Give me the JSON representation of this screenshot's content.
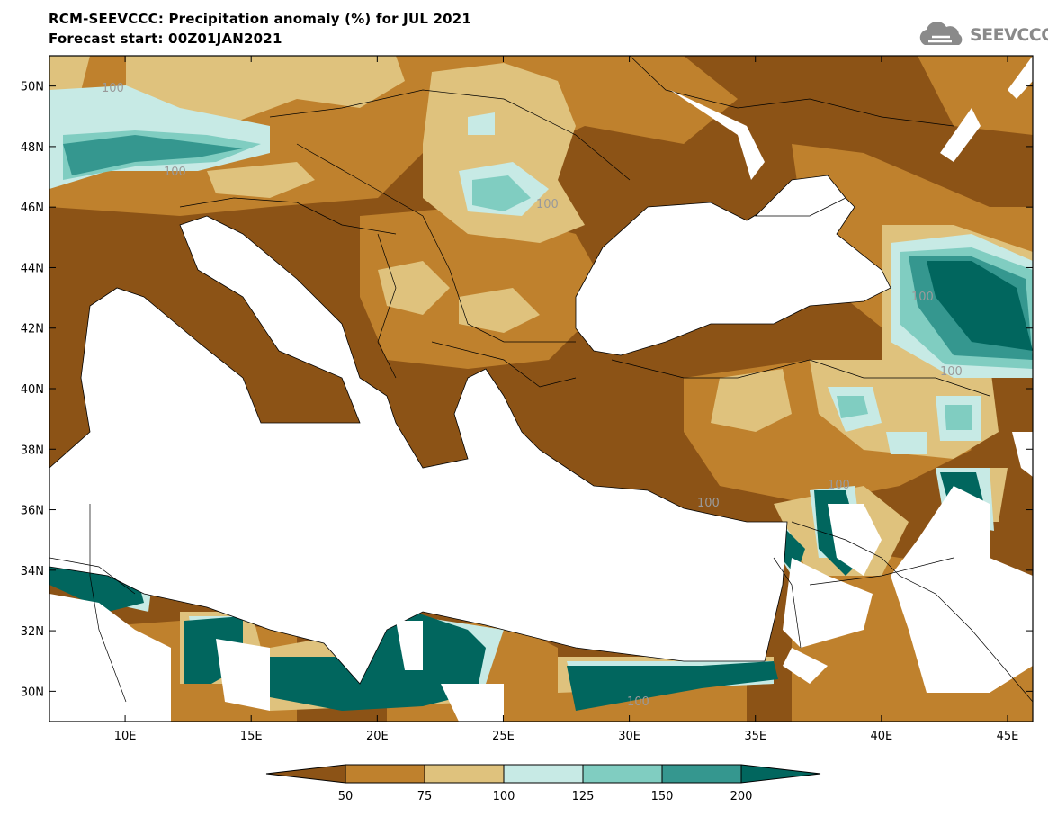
{
  "title": "RCM-SEEVCCC: Precipitation anomaly (%) for JUL 2021",
  "subtitle": "Forecast start: 00Z01JAN2021",
  "logo": {
    "text": "SEEVCCC",
    "icon": "cloud-icon"
  },
  "chart_data": {
    "type": "map",
    "variable": "Precipitation anomaly (%)",
    "period": "JUL 2021",
    "lon_range": [
      7,
      46
    ],
    "lat_range": [
      29,
      51
    ],
    "lon_ticks": [
      "10E",
      "15E",
      "20E",
      "25E",
      "30E",
      "35E",
      "40E",
      "45E"
    ],
    "lat_ticks": [
      "30N",
      "32N",
      "34N",
      "36N",
      "38N",
      "40N",
      "42N",
      "44N",
      "46N",
      "48N",
      "50N"
    ],
    "contour_labels": [
      "100",
      "100",
      "100",
      "100",
      "100",
      "100",
      "100",
      "100"
    ],
    "colorbar": {
      "labels": [
        "50",
        "75",
        "100",
        "125",
        "150",
        "200"
      ],
      "colors": [
        "#8c5316",
        "#bf812d",
        "#dfc27d",
        "#c7eae5",
        "#80cdc1",
        "#35978f",
        "#01665e"
      ]
    }
  }
}
